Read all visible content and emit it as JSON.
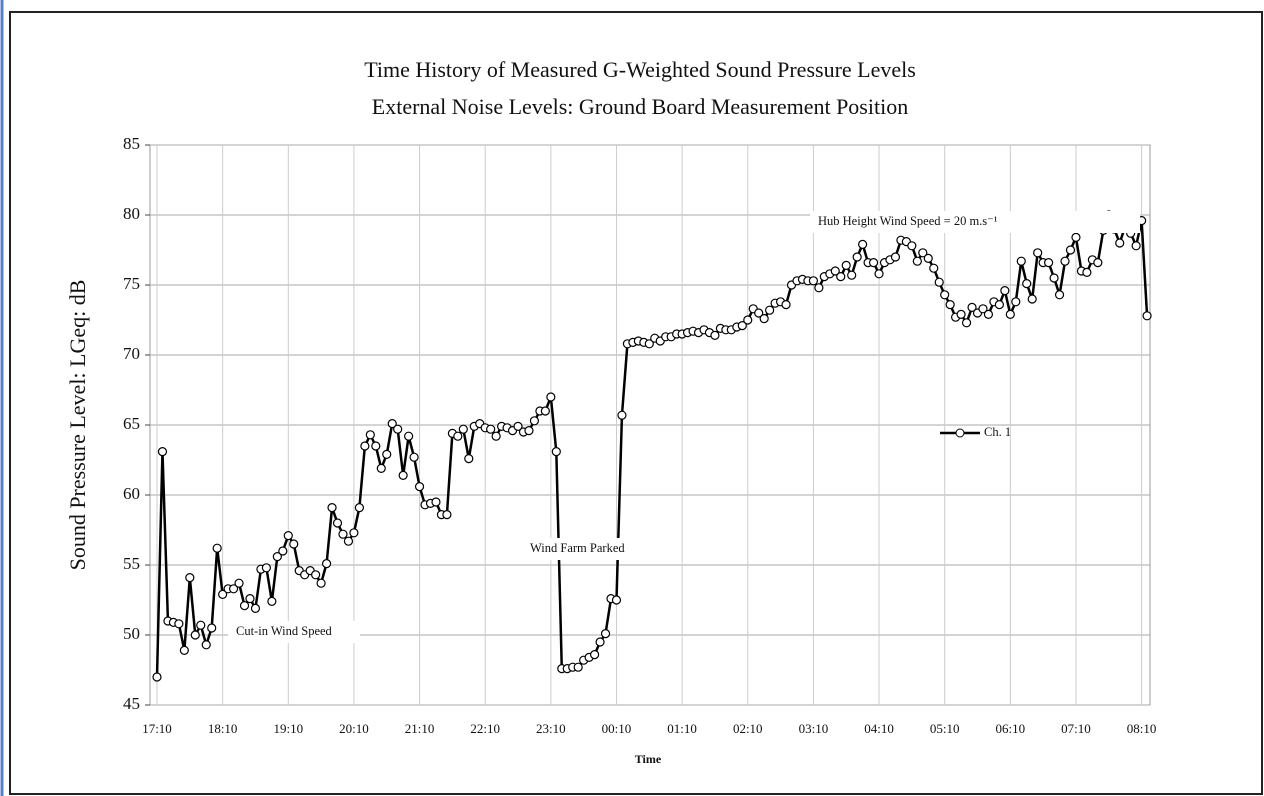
{
  "chart_data": {
    "type": "line",
    "title": "Time History of Measured G-Weighted Sound Pressure Levels",
    "subtitle": "External Noise Levels: Ground Board Measurement Position",
    "x_label": "Time",
    "y_label": "Sound Pressure Level: LGeq: dB",
    "annotations": [
      "Cut-in Wind Speed",
      "Wind Farm Parked",
      "Hub Height Wind Speed = 20 m.s⁻¹"
    ],
    "ylim": [
      45,
      85
    ],
    "yticks": [
      45,
      50,
      55,
      60,
      65,
      70,
      75,
      80,
      85
    ],
    "grid": true,
    "legend_position": "right",
    "categories": [
      "17:10",
      null,
      null,
      null,
      null,
      null,
      null,
      null,
      null,
      null,
      null,
      null,
      "18:10",
      null,
      null,
      null,
      null,
      null,
      null,
      null,
      null,
      null,
      null,
      null,
      "19:10",
      null,
      null,
      null,
      null,
      null,
      null,
      null,
      null,
      null,
      null,
      null,
      "20:10",
      null,
      null,
      null,
      null,
      null,
      null,
      null,
      null,
      null,
      null,
      null,
      "21:10",
      null,
      null,
      null,
      null,
      null,
      null,
      null,
      null,
      null,
      null,
      null,
      "22:10",
      null,
      null,
      null,
      null,
      null,
      null,
      null,
      null,
      null,
      null,
      null,
      "23:10",
      null,
      null,
      null,
      null,
      null,
      null,
      null,
      null,
      null,
      null,
      null,
      "00:10",
      null,
      null,
      null,
      null,
      null,
      null,
      null,
      null,
      null,
      null,
      null,
      "01:10",
      null,
      null,
      null,
      null,
      null,
      null,
      null,
      null,
      null,
      null,
      null,
      "02:10",
      null,
      null,
      null,
      null,
      null,
      null,
      null,
      null,
      null,
      null,
      null,
      "03:10",
      null,
      null,
      null,
      null,
      null,
      null,
      null,
      null,
      null,
      null,
      null,
      "04:10",
      null,
      null,
      null,
      null,
      null,
      null,
      null,
      null,
      null,
      null,
      null,
      "05:10",
      null,
      null,
      null,
      null,
      null,
      null,
      null,
      null,
      null,
      null,
      null,
      "06:10",
      null,
      null,
      null,
      null,
      null,
      null,
      null,
      null,
      null,
      null,
      null,
      "07:10",
      null,
      null,
      null,
      null,
      null,
      null,
      null,
      null,
      null,
      null,
      null,
      "08:10",
      null
    ],
    "series": [
      {
        "name": "Ch. 1",
        "color": "#000000",
        "values": [
          47.0,
          63.1,
          51.0,
          50.9,
          50.8,
          48.9,
          54.1,
          50.0,
          50.7,
          49.3,
          50.5,
          56.2,
          52.9,
          53.3,
          53.3,
          53.7,
          52.1,
          52.6,
          51.9,
          54.7,
          54.8,
          52.4,
          55.6,
          56.0,
          57.1,
          56.5,
          54.6,
          54.3,
          54.6,
          54.3,
          53.7,
          55.1,
          59.1,
          58.0,
          57.2,
          56.7,
          57.3,
          59.1,
          63.5,
          64.3,
          63.5,
          61.9,
          62.9,
          65.1,
          64.7,
          61.4,
          64.2,
          62.7,
          60.6,
          59.3,
          59.4,
          59.5,
          58.6,
          58.6,
          64.4,
          64.2,
          64.7,
          62.6,
          64.9,
          65.1,
          64.8,
          64.7,
          64.2,
          64.9,
          64.8,
          64.6,
          64.9,
          64.5,
          64.6,
          65.3,
          66.0,
          66.0,
          67.0,
          63.1,
          47.6,
          47.6,
          47.7,
          47.7,
          48.2,
          48.4,
          48.6,
          49.5,
          50.1,
          52.6,
          52.5,
          65.7,
          70.8,
          70.9,
          71.0,
          70.9,
          70.8,
          71.2,
          71.0,
          71.3,
          71.3,
          71.5,
          71.5,
          71.6,
          71.7,
          71.6,
          71.8,
          71.6,
          71.4,
          71.9,
          71.8,
          71.8,
          72.0,
          72.1,
          72.5,
          73.3,
          73.0,
          72.6,
          73.2,
          73.7,
          73.8,
          73.6,
          75.0,
          75.3,
          75.4,
          75.3,
          75.3,
          74.8,
          75.6,
          75.8,
          76.0,
          75.6,
          76.4,
          75.7,
          77.0,
          77.9,
          76.6,
          76.6,
          75.8,
          76.6,
          76.8,
          77.0,
          78.2,
          78.1,
          77.8,
          76.7,
          77.3,
          76.9,
          76.2,
          75.2,
          74.3,
          73.6,
          72.7,
          72.9,
          72.3,
          73.4,
          73.0,
          73.3,
          72.9,
          73.8,
          73.6,
          74.6,
          72.9,
          73.8,
          76.7,
          75.1,
          74.0,
          77.3,
          76.6,
          76.6,
          75.5,
          74.3,
          76.7,
          77.5,
          78.4,
          76.0,
          75.9,
          76.8,
          76.6,
          78.9,
          80.0,
          79.0,
          78.0,
          79.2,
          78.7,
          77.8,
          79.6,
          72.8
        ]
      }
    ]
  }
}
